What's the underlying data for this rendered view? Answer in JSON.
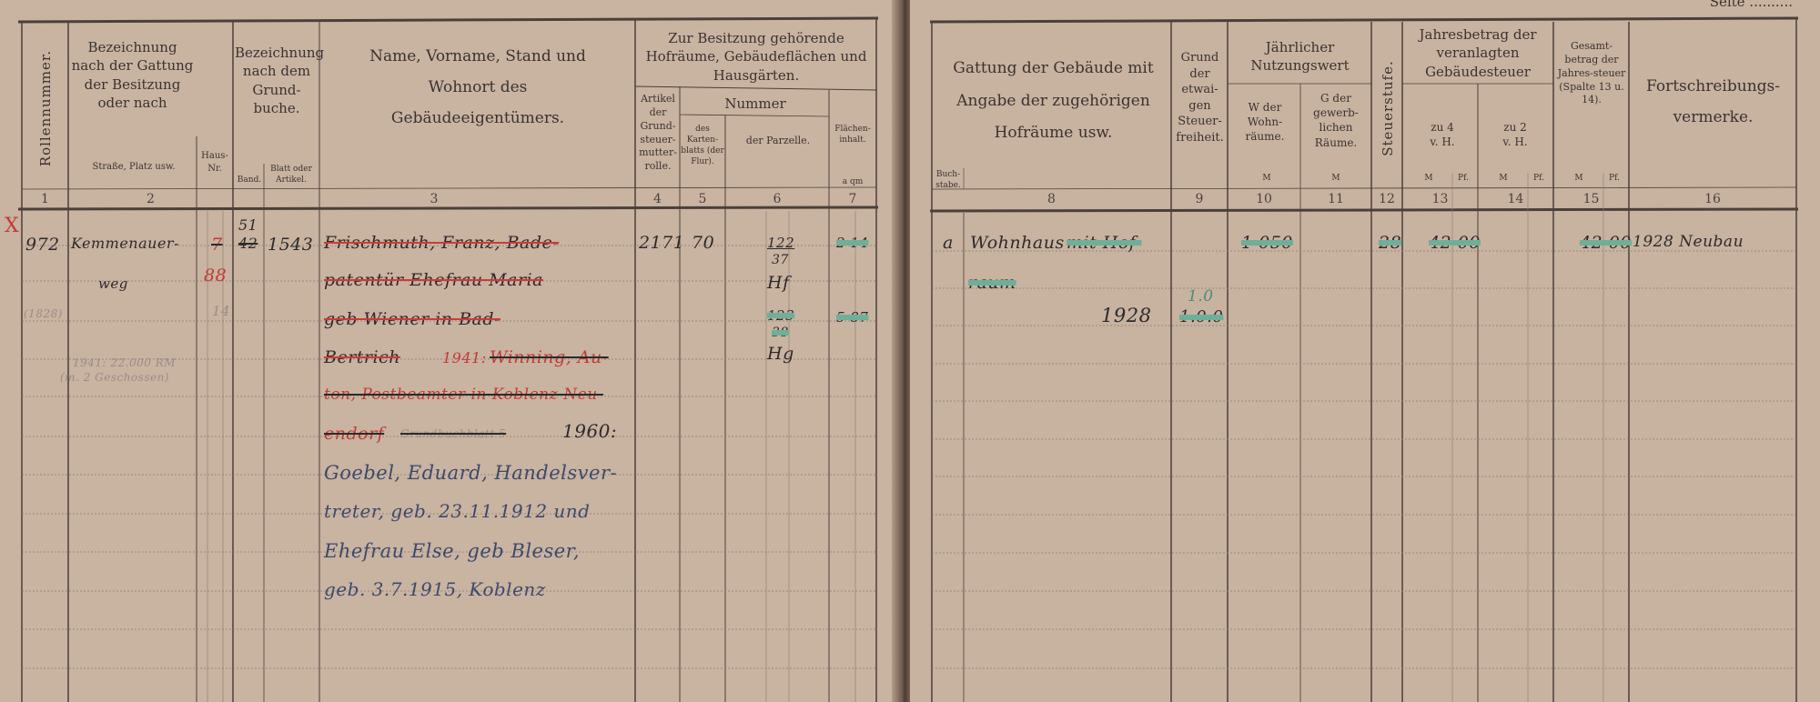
{
  "left_page": {
    "headers": {
      "col1": "Rollennummer.",
      "col2_title": "Bezeichnung nach der Gattung der Besitzung oder nach",
      "col2_sub_street": "Straße, Platz usw.",
      "col2_sub_house": "Haus-Nr.",
      "col_grundbuch_title": "Bezeichnung nach dem Grund-buche.",
      "col_grundbuch_band": "Band.",
      "col_grundbuch_blatt": "Blatt oder Artikel.",
      "col3_title": "Name, Vorname, Stand und Wohnort des Gebäudeeigentümers.",
      "group_title": "Zur Besitzung gehörende Hofräume, Gebäudeflächen und Hausgärten.",
      "col4": "Artikel der Grund-steuer-mutter-rolle.",
      "nummer": "Nummer",
      "col5": "des Karten-blatts (der Flur).",
      "col6": "der Parzelle.",
      "col7": "Flächen-inhalt.",
      "col7_units": "a   qm"
    },
    "column_numbers": [
      "1",
      "2",
      "3",
      "4",
      "5",
      "6",
      "7"
    ],
    "entry": {
      "mark": "X",
      "roll_number": "972",
      "street_line1": "Kemmenauer-",
      "street_line2": "weg",
      "house_old": "7",
      "house_new": "88",
      "house_faint": "14",
      "year_faint": "(1828)",
      "note_faint_1": "1941: 22.000 RM",
      "note_faint_2": "(m. 2 Geschossen)",
      "band_new": "51",
      "band_old": "42",
      "blatt": "1543",
      "owner_lines": [
        "Frischmuth, Franz, Bade-",
        "patentür Ehefrau Maria",
        "geb Wiener in Bad-",
        "Bertrich",
        "1941:",
        "Winning, Au-",
        "ton, Postbeamter in Koblenz-Neu-",
        "endorf",
        "Grundbuchblatt 5",
        "1960:",
        "Goebel, Eduard, Handelsver-",
        "treter, geb. 23.11.1912 und",
        "Ehefrau Else, geb Bleser,",
        "geb. 3.7.1915, Koblenz"
      ],
      "artikel": "2171",
      "kartenblatt": "70",
      "parcels": [
        {
          "number": "122",
          "sub": "37",
          "type": "Hf",
          "area": "2 14"
        },
        {
          "number": "123",
          "sub": "38",
          "type": "Hg",
          "area": "5 87"
        }
      ]
    }
  },
  "right_page": {
    "corner": "Seite ..........",
    "headers": {
      "col8": "Gattung der Gebäude mit Angabe der zugehörigen Hofräume usw.",
      "col8_sub": "Buch-stabe.",
      "col9": "Grund der etwai-gen Steuer-freiheit.",
      "nutzwert": "Jährlicher Nutzungswert",
      "col10": "W der Wohn-räume.",
      "col11": "G der gewerb-lichen Räume.",
      "currency": "M",
      "col12": "Steuerstufe.",
      "jahresbetrag": "Jahresbetrag der veranlagten Gebäudesteuer",
      "col13": "zu 4 v. H.",
      "col14": "zu 2 v. H.",
      "col15": "Gesamt-betrag der Jahres-steuer (Spalte 13 u. 14).",
      "pf": "Pf.",
      "col16": "Fortschreibungs-vermerke."
    },
    "column_numbers": [
      "8",
      "9",
      "10",
      "11",
      "12",
      "13",
      "14",
      "15",
      "16"
    ],
    "entry": {
      "letter": "a",
      "building_1": "Wohnhaus",
      "building_2": "mit Hof-",
      "building_3": "raum",
      "year": "1928",
      "exemption_new": "1.0",
      "exemption_old": "1.0.0",
      "wohn_value": "1 050",
      "steuerstufe": "28",
      "tax_4pct": "42 00",
      "tax_total": "42 00",
      "remark": "1928 Neubau"
    }
  }
}
